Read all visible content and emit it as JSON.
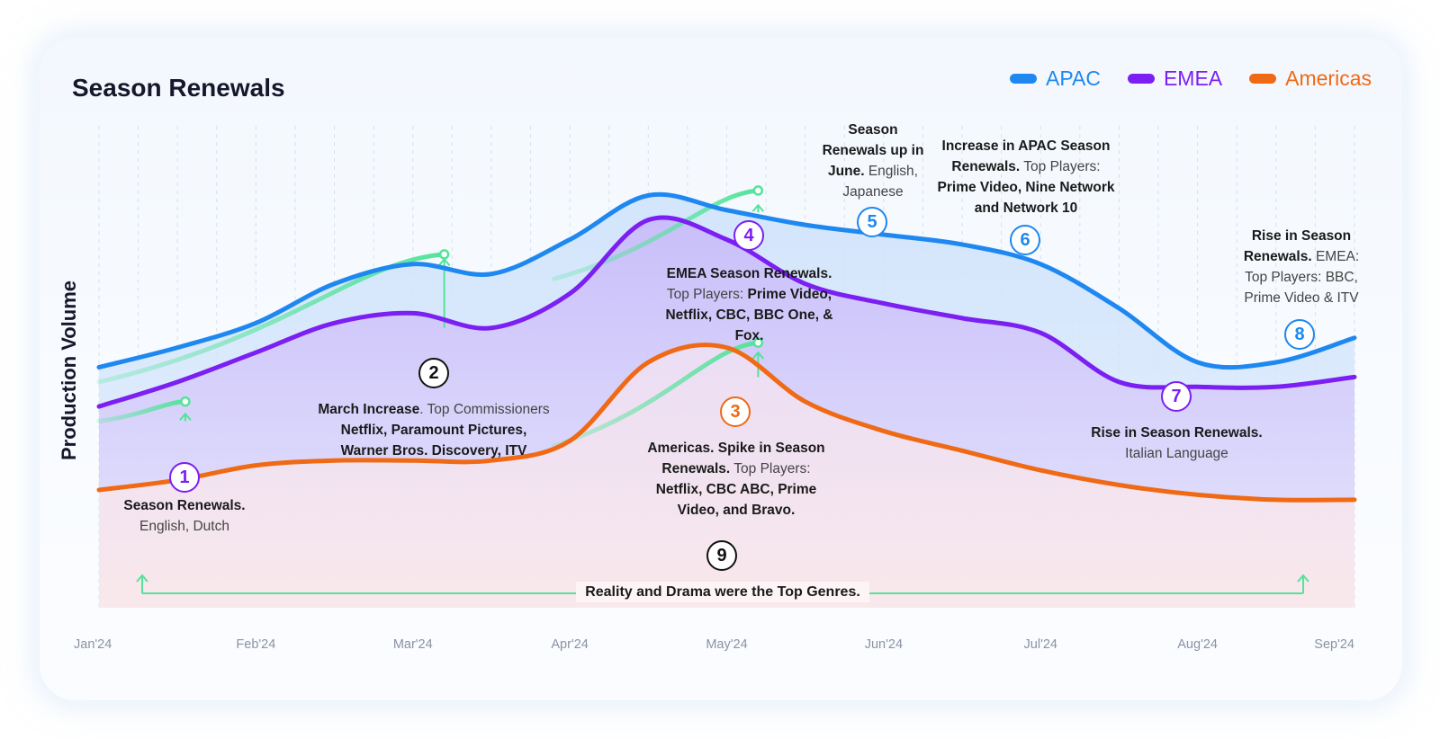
{
  "colors": {
    "apac": "#1e88f0",
    "emea": "#7b1ff2",
    "americas": "#f06914",
    "highlight": "#53e39a",
    "neutral": "#111111"
  },
  "chart_data": {
    "type": "line",
    "title": "Season Renewals",
    "ylabel": "Production Volume",
    "xlabel": "",
    "categories": [
      "Jan'24",
      "Feb'24",
      "Mar'24",
      "Apr'24",
      "May'24",
      "Jun'24",
      "Jul'24",
      "Aug'24",
      "Sep'24"
    ],
    "x": [
      0,
      0.5,
      1,
      1.5,
      2,
      2.5,
      3,
      3.5,
      4,
      4.5,
      5,
      5.5,
      6,
      6.5,
      7,
      7.5,
      8
    ],
    "ylim": [
      0,
      100
    ],
    "grid": "vertical-dashed",
    "legend_position": "top-right",
    "series": [
      {
        "name": "APAC",
        "values": [
          49,
          53,
          58,
          66,
          70,
          68,
          75,
          84,
          81,
          78,
          76,
          74,
          70,
          61,
          50,
          50,
          55
        ]
      },
      {
        "name": "EMEA",
        "values": [
          41,
          46,
          52,
          58,
          60,
          57,
          64,
          79,
          75,
          66,
          62,
          59,
          56,
          46,
          45,
          45,
          47
        ]
      },
      {
        "name": "Americas",
        "values": [
          24,
          26,
          29,
          30,
          30,
          30,
          34,
          50,
          53,
          42,
          36,
          32,
          28,
          25,
          23,
          22,
          22
        ]
      }
    ],
    "legend": [
      "APAC",
      "EMEA",
      "Americas"
    ]
  },
  "annotations": [
    {
      "num": "1",
      "bold": "Season Renewals.",
      "regular": "English, Dutch"
    },
    {
      "num": "2",
      "bold": "March Increase",
      "regular": ". Top Commissioners",
      "bold2": "Netflix, Paramount Pictures, Warner Bros. Discovery, ITV"
    },
    {
      "num": "3",
      "bold": "Americas. Spike in Season Renewals.",
      "regular": "Top Players:",
      "bold2": "Netflix, CBC ABC, Prime Video, and Bravo."
    },
    {
      "num": "4",
      "bold": "EMEA Season Renewals.",
      "regular": "Top Players:",
      "bold2": "Prime Video, Netflix, CBC, BBC One, & Fox."
    },
    {
      "num": "5",
      "bold": "Season Renewals up in June.",
      "regular": "English, Japanese"
    },
    {
      "num": "6",
      "bold": "Increase in APAC Season Renewals.",
      "regular": "Top Players:",
      "bold2": "Prime Video, Nine Network and Network 10"
    },
    {
      "num": "7",
      "bold": "Rise in Season Renewals.",
      "regular": "Italian Language"
    },
    {
      "num": "8",
      "bold": "Rise in Season Renewals.",
      "regular": "EMEA: Top Players: BBC, Prime Video & ITV"
    },
    {
      "num": "9",
      "bold": "Reality and Drama were the Top Genres."
    }
  ]
}
